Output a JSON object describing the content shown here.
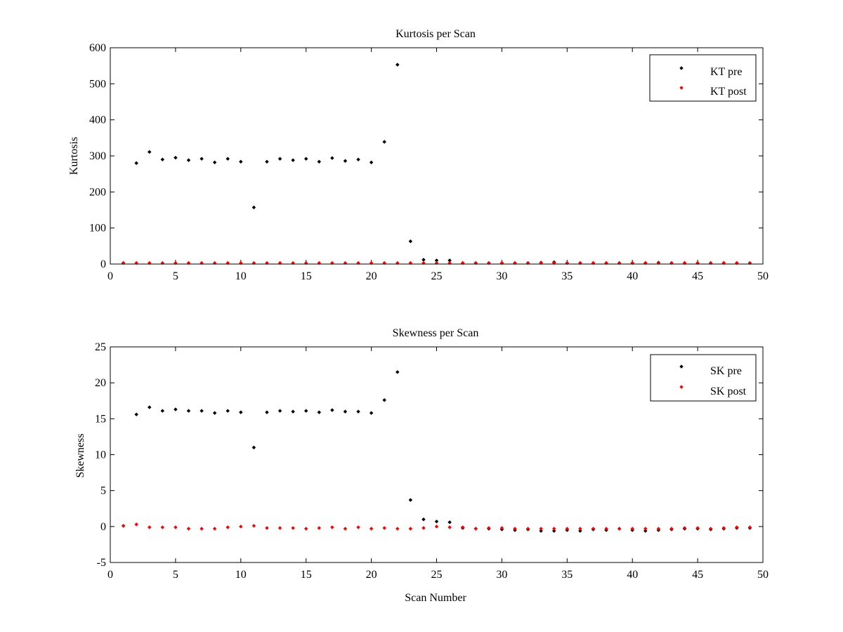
{
  "chart_data": [
    {
      "type": "scatter",
      "title": "Kurtosis per Scan",
      "xlabel": "",
      "ylabel": "Kurtosis",
      "xlim": [
        0,
        50
      ],
      "ylim": [
        0,
        600
      ],
      "xticks": [
        0,
        5,
        10,
        15,
        20,
        25,
        30,
        35,
        40,
        45,
        50
      ],
      "yticks": [
        0,
        100,
        200,
        300,
        400,
        500,
        600
      ],
      "grid": false,
      "legend_position": "top-right",
      "series": [
        {
          "name": "KT pre",
          "color": "#000000",
          "x": [
            1,
            2,
            3,
            4,
            5,
            6,
            7,
            8,
            9,
            10,
            11,
            12,
            13,
            14,
            15,
            16,
            17,
            18,
            19,
            20,
            21,
            22,
            23,
            24,
            25,
            26,
            27,
            28,
            29,
            30,
            31,
            32,
            33,
            34,
            35,
            36,
            37,
            38,
            39,
            40,
            41,
            42,
            43,
            44,
            45,
            46,
            47,
            48,
            49
          ],
          "y": [
            3,
            280,
            311,
            290,
            295,
            288,
            292,
            282,
            292,
            284,
            157,
            284,
            292,
            288,
            292,
            284,
            294,
            286,
            290,
            282,
            339,
            553,
            63,
            12,
            10,
            10,
            3,
            3,
            3,
            3,
            3,
            3,
            4,
            5,
            3,
            3,
            3,
            3,
            3,
            3,
            3,
            4,
            3,
            3,
            3,
            3,
            3,
            3,
            3
          ]
        },
        {
          "name": "KT post",
          "color": "#ff0000",
          "x": [
            1,
            2,
            3,
            4,
            5,
            6,
            7,
            8,
            9,
            10,
            11,
            12,
            13,
            14,
            15,
            16,
            17,
            18,
            19,
            20,
            21,
            22,
            23,
            24,
            25,
            26,
            27,
            28,
            29,
            30,
            31,
            32,
            33,
            34,
            35,
            36,
            37,
            38,
            39,
            40,
            41,
            42,
            43,
            44,
            45,
            46,
            47,
            48,
            49
          ],
          "y": [
            3,
            3,
            3,
            3,
            3,
            3,
            3,
            3,
            3,
            3,
            3,
            3,
            3,
            3,
            3,
            3,
            3,
            3,
            3,
            3,
            3,
            3,
            3,
            3,
            3,
            3,
            3,
            3,
            3,
            3,
            3,
            3,
            3,
            3,
            3,
            3,
            3,
            3,
            3,
            3,
            3,
            3,
            3,
            3,
            3,
            3,
            3,
            3,
            3
          ]
        }
      ]
    },
    {
      "type": "scatter",
      "title": "Skewness per Scan",
      "xlabel": "Scan Number",
      "ylabel": "Skewness",
      "xlim": [
        0,
        50
      ],
      "ylim": [
        -5,
        25
      ],
      "xticks": [
        0,
        5,
        10,
        15,
        20,
        25,
        30,
        35,
        40,
        45,
        50
      ],
      "yticks": [
        -5,
        0,
        5,
        10,
        15,
        20,
        25
      ],
      "grid": false,
      "legend_position": "top-right",
      "series": [
        {
          "name": "SK pre",
          "color": "#000000",
          "x": [
            1,
            2,
            3,
            4,
            5,
            6,
            7,
            8,
            9,
            10,
            11,
            12,
            13,
            14,
            15,
            16,
            17,
            18,
            19,
            20,
            21,
            22,
            23,
            24,
            25,
            26,
            27,
            28,
            29,
            30,
            31,
            32,
            33,
            34,
            35,
            36,
            37,
            38,
            39,
            40,
            41,
            42,
            43,
            44,
            45,
            46,
            47,
            48,
            49
          ],
          "y": [
            0.1,
            15.6,
            16.6,
            16.1,
            16.3,
            16.1,
            16.1,
            15.8,
            16.1,
            15.9,
            11.0,
            15.9,
            16.1,
            16.0,
            16.1,
            15.9,
            16.2,
            16.0,
            16.0,
            15.8,
            17.6,
            21.5,
            3.7,
            1.0,
            0.7,
            0.6,
            -0.2,
            -0.3,
            -0.3,
            -0.4,
            -0.5,
            -0.4,
            -0.6,
            -0.6,
            -0.5,
            -0.6,
            -0.4,
            -0.5,
            -0.3,
            -0.5,
            -0.6,
            -0.5,
            -0.4,
            -0.3,
            -0.3,
            -0.4,
            -0.3,
            -0.2,
            -0.2
          ]
        },
        {
          "name": "SK post",
          "color": "#ff0000",
          "x": [
            1,
            2,
            3,
            4,
            5,
            6,
            7,
            8,
            9,
            10,
            11,
            12,
            13,
            14,
            15,
            16,
            17,
            18,
            19,
            20,
            21,
            22,
            23,
            24,
            25,
            26,
            27,
            28,
            29,
            30,
            31,
            32,
            33,
            34,
            35,
            36,
            37,
            38,
            39,
            40,
            41,
            42,
            43,
            44,
            45,
            46,
            47,
            48,
            49
          ],
          "y": [
            0.1,
            0.3,
            -0.1,
            -0.1,
            -0.1,
            -0.3,
            -0.3,
            -0.3,
            -0.1,
            0.0,
            0.1,
            -0.2,
            -0.2,
            -0.2,
            -0.3,
            -0.2,
            -0.1,
            -0.3,
            -0.1,
            -0.3,
            -0.2,
            -0.3,
            -0.3,
            -0.2,
            0.0,
            -0.1,
            -0.1,
            -0.3,
            -0.2,
            -0.2,
            -0.3,
            -0.3,
            -0.3,
            -0.3,
            -0.3,
            -0.3,
            -0.3,
            -0.3,
            -0.3,
            -0.3,
            -0.3,
            -0.3,
            -0.3,
            -0.2,
            -0.2,
            -0.3,
            -0.2,
            -0.1,
            -0.1
          ]
        }
      ]
    }
  ]
}
